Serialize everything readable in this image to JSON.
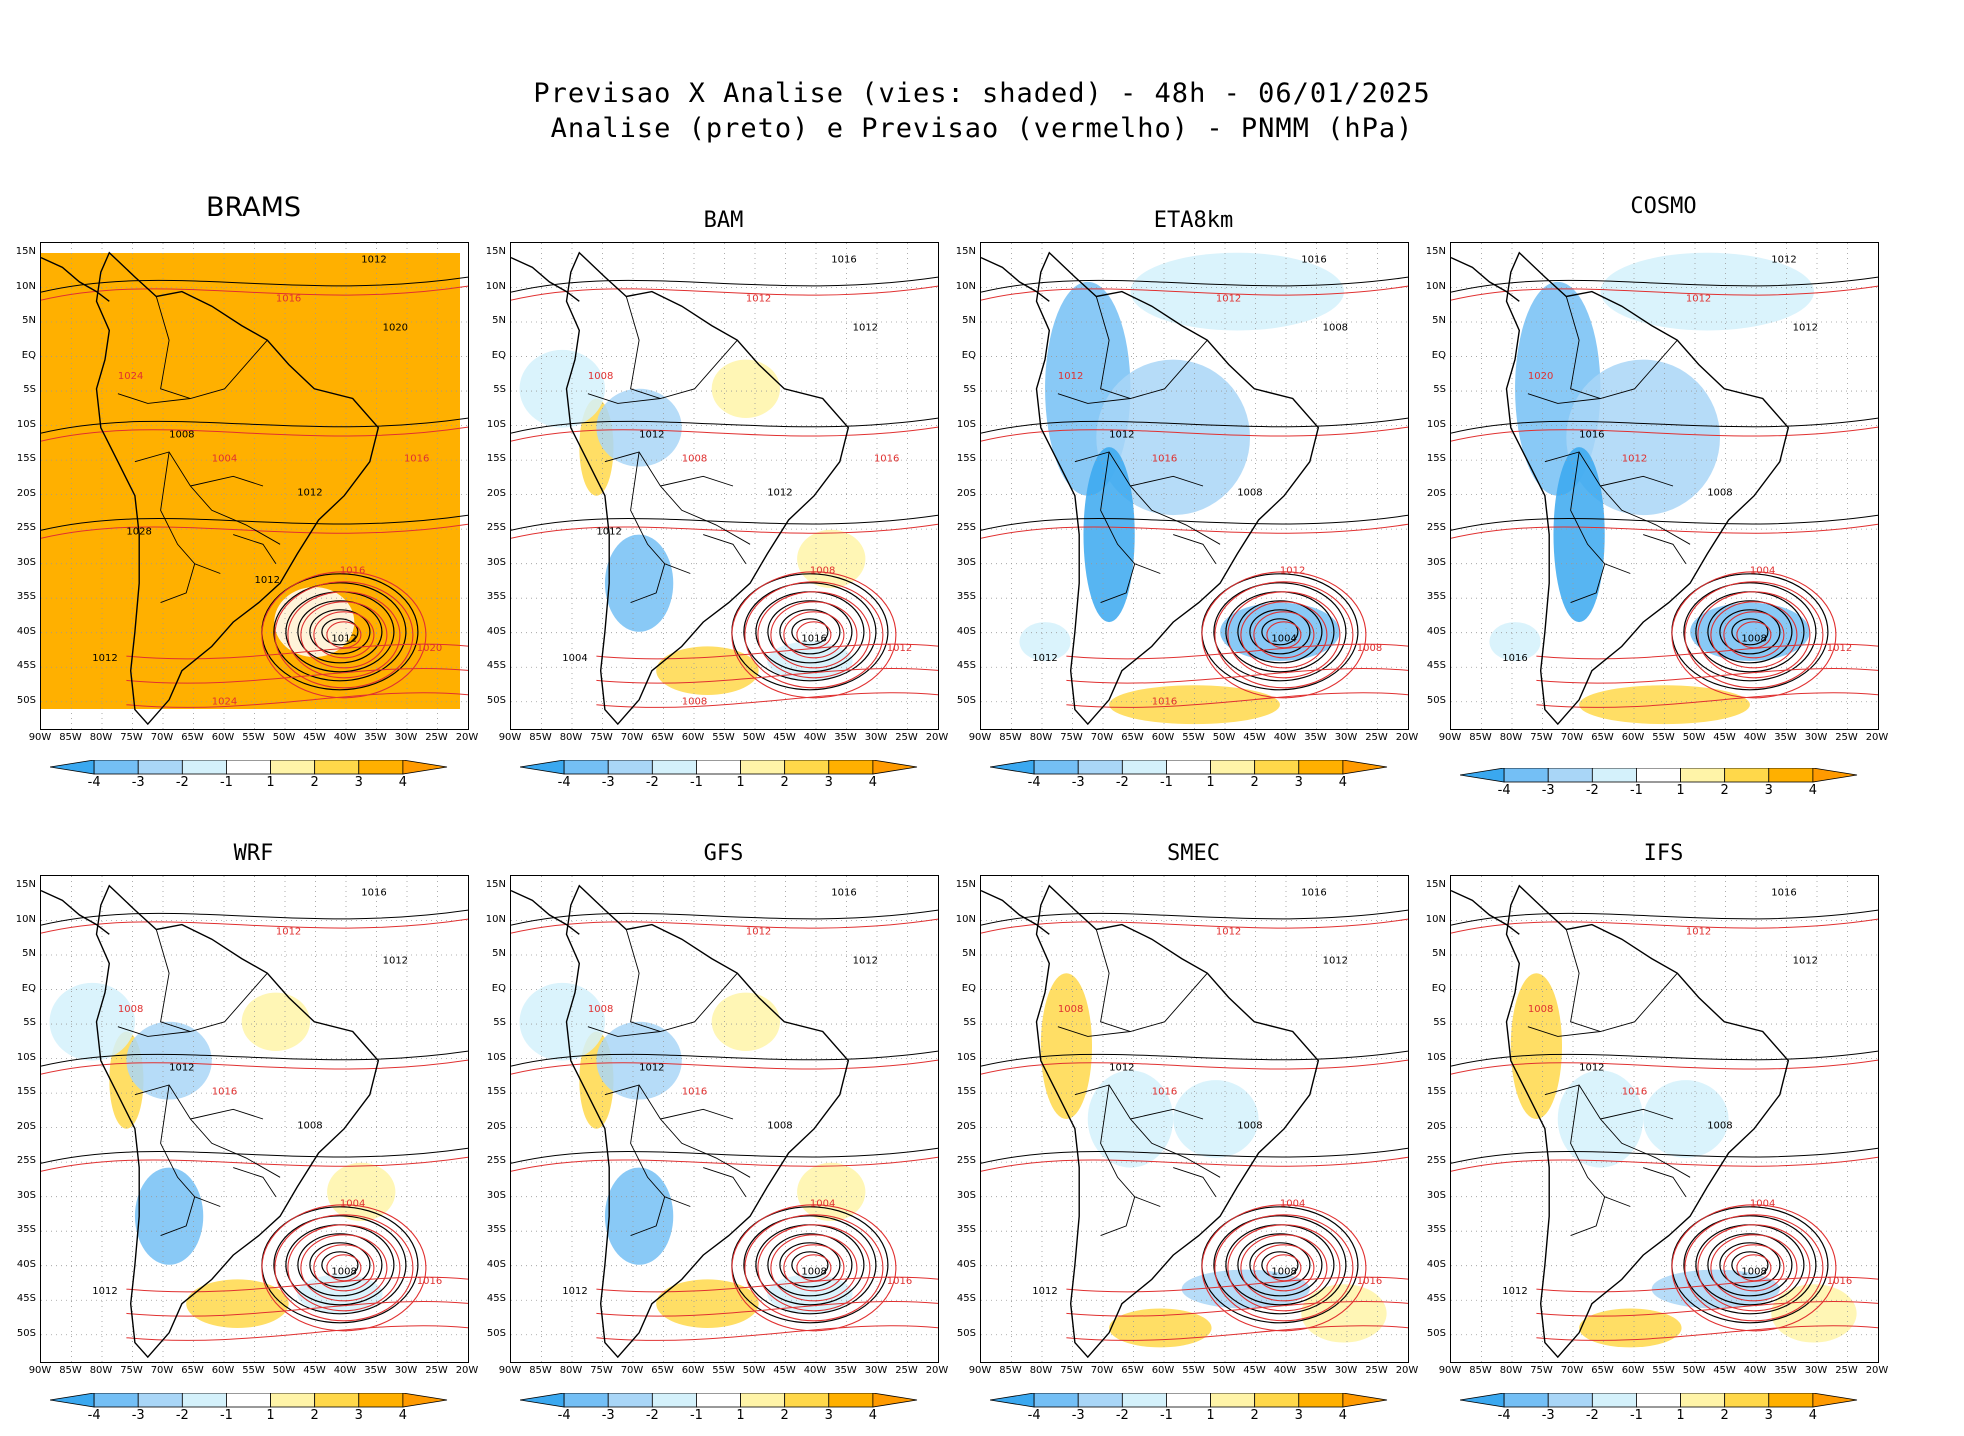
{
  "header": {
    "title_line1": "Previsao X Analise (vies: shaded) - 48h - 06/01/2025",
    "title_line2": "Analise (preto) e Previsao (vermelho) - PNMM (hPa)"
  },
  "lat_labels": [
    "15N",
    "10N",
    "5N",
    "EQ",
    "5S",
    "10S",
    "15S",
    "20S",
    "25S",
    "30S",
    "35S",
    "40S",
    "45S",
    "50S"
  ],
  "lon_labels": [
    "90W",
    "85W",
    "80W",
    "75W",
    "70W",
    "65W",
    "60W",
    "55W",
    "50W",
    "45W",
    "40W",
    "35W",
    "30W",
    "25W",
    "20W"
  ],
  "colorbar": {
    "labels": [
      "-4",
      "-3",
      "-2",
      "-1",
      "1",
      "2",
      "3",
      "4"
    ],
    "colors": [
      "#3aa8f0",
      "#74bff5",
      "#a9d6f7",
      "#d4f1fb",
      "#ffffff",
      "#fff4a8",
      "#ffd84a",
      "#ffb000",
      "#ff9a00"
    ]
  },
  "contour_colors": {
    "analysis": "#000000",
    "forecast": "#e03030"
  },
  "panels": [
    {
      "name": "BRAMS",
      "bias": "orange",
      "labels": [
        "1012",
        "1016",
        "1020",
        "1024",
        "1008",
        "1004",
        "1012",
        "1016",
        "1012",
        "1020",
        "1012",
        "1024",
        "1028",
        "1016",
        "1012"
      ]
    },
    {
      "name": "BAM",
      "bias": "mixed",
      "labels": [
        "1016",
        "1012",
        "1012",
        "1008",
        "1012",
        "1008",
        "1012",
        "1008",
        "1016",
        "1012",
        "1004",
        "1008",
        "1012",
        "1016"
      ]
    },
    {
      "name": "ETA8km",
      "bias": "blue",
      "labels": [
        "1016",
        "1012",
        "1008",
        "1012",
        "1012",
        "1016",
        "1008",
        "1012",
        "1004",
        "1008",
        "1012",
        "1016"
      ]
    },
    {
      "name": "COSMO",
      "bias": "blue",
      "labels": [
        "1012",
        "1012",
        "1012",
        "1020",
        "1016",
        "1012",
        "1008",
        "1004",
        "1008",
        "1012",
        "1016"
      ]
    },
    {
      "name": "WRF",
      "bias": "mixed",
      "labels": [
        "1016",
        "1012",
        "1012",
        "1008",
        "1012",
        "1016",
        "1008",
        "1004",
        "1008",
        "1016",
        "1012"
      ]
    },
    {
      "name": "GFS",
      "bias": "mixed",
      "labels": [
        "1016",
        "1012",
        "1012",
        "1008",
        "1012",
        "1016",
        "1008",
        "1004",
        "1008",
        "1016",
        "1012"
      ]
    },
    {
      "name": "SMEC",
      "bias": "light",
      "labels": [
        "1016",
        "1012",
        "1012",
        "1008",
        "1012",
        "1016",
        "1008",
        "1004",
        "1008",
        "1016",
        "1012"
      ]
    },
    {
      "name": "IFS",
      "bias": "light",
      "labels": [
        "1016",
        "1012",
        "1012",
        "1008",
        "1012",
        "1016",
        "1008",
        "1004",
        "1008",
        "1016",
        "1012"
      ]
    }
  ]
}
